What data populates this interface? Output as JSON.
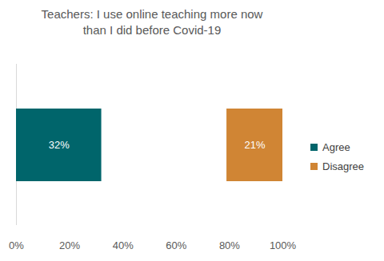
{
  "chart_data": {
    "type": "bar",
    "orientation": "horizontal",
    "title": "Teachers: I use online teaching more now than I did before Covid-19",
    "categories": [
      null
    ],
    "series": [
      {
        "name": "Agree",
        "color": "#00656b",
        "values": [
          32
        ],
        "value_labels": [
          "32%"
        ]
      },
      {
        "name": "Disagree",
        "color": "#d08534",
        "values": [
          21
        ],
        "value_labels": [
          "21%"
        ]
      }
    ],
    "xlim": [
      0,
      100
    ],
    "xticks": [
      {
        "value": 0,
        "label": "0%"
      },
      {
        "value": 20,
        "label": "20%"
      },
      {
        "value": 40,
        "label": "40%"
      },
      {
        "value": 60,
        "label": "60%"
      },
      {
        "value": 80,
        "label": "80%"
      },
      {
        "value": 100,
        "label": "100%"
      }
    ],
    "data_labels": true,
    "grid": false,
    "legend": "right"
  }
}
